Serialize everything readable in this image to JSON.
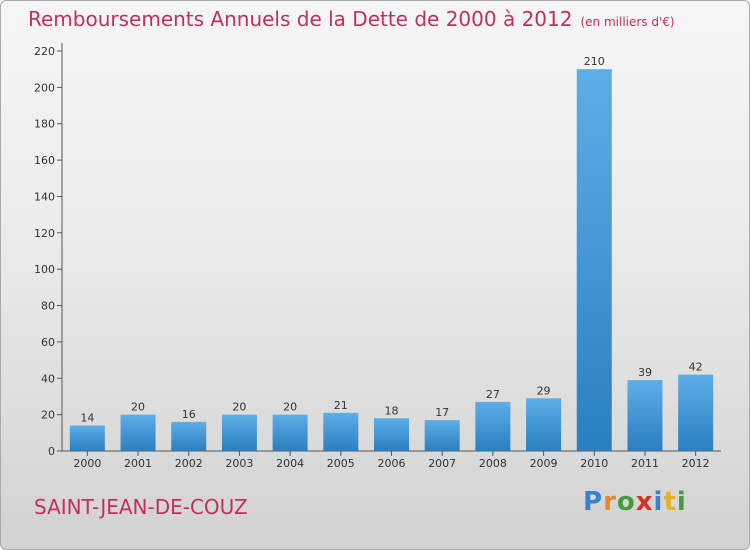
{
  "header": {
    "title": "Remboursements Annuels de la Dette de 2000 à 2012",
    "unit": "(en milliers d'€)"
  },
  "footer": {
    "commune": "SAINT-JEAN-DE-COUZ",
    "logo_text": "Proxiti"
  },
  "colors": {
    "title": "#c0315a",
    "bar_top": "#5daee8",
    "bar_bottom": "#2a7fc0",
    "logo": [
      "#3a7fd0",
      "#e8892a",
      "#4a9a3a",
      "#d8302a",
      "#3a7fd0",
      "#e8b02a",
      "#4a9a3a"
    ]
  },
  "chart_data": {
    "type": "bar",
    "title": "Remboursements Annuels de la Dette de 2000 à 2012",
    "categories": [
      "2000",
      "2001",
      "2002",
      "2003",
      "2004",
      "2005",
      "2006",
      "2007",
      "2008",
      "2009",
      "2010",
      "2011",
      "2012"
    ],
    "values": [
      14,
      20,
      16,
      20,
      20,
      21,
      18,
      17,
      27,
      29,
      210,
      39,
      42
    ],
    "ylim": [
      0,
      220
    ],
    "yticks": [
      0,
      20,
      40,
      60,
      80,
      100,
      120,
      140,
      160,
      180,
      200,
      220
    ],
    "grid": false,
    "legend": "none"
  }
}
